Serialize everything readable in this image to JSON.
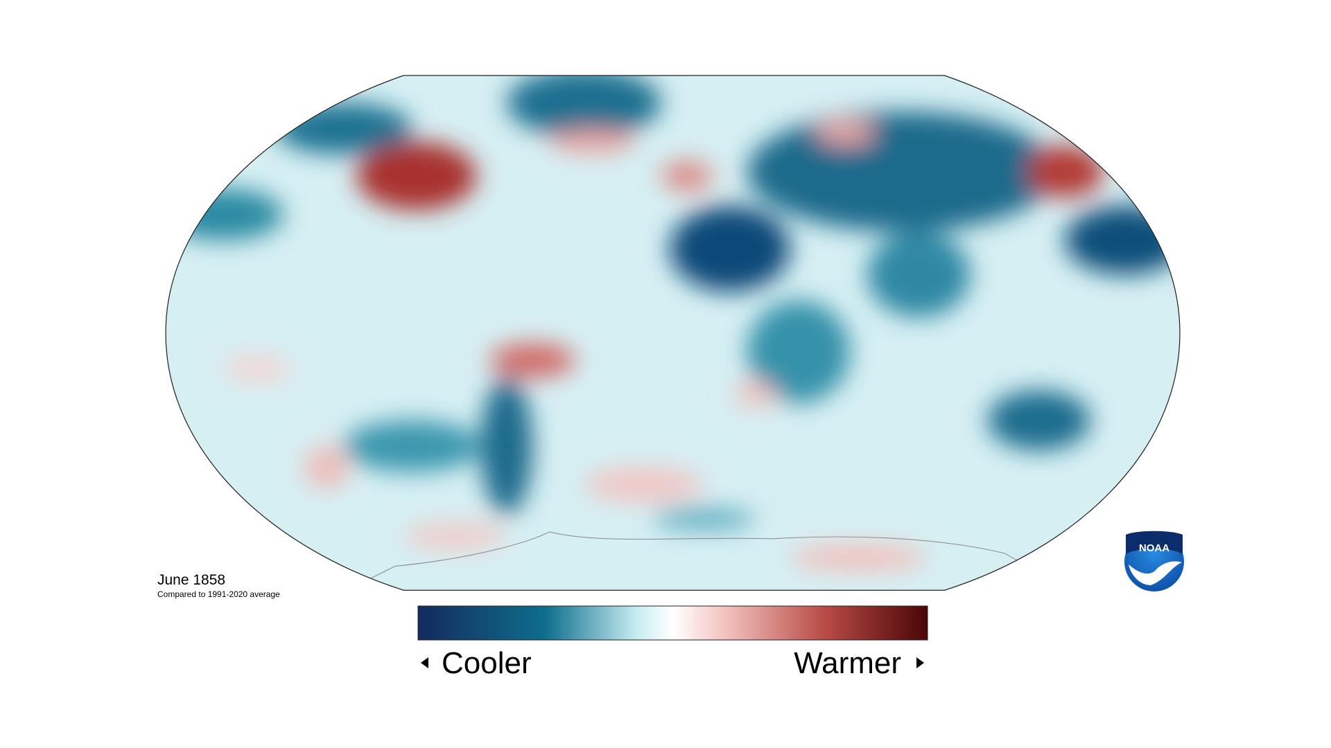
{
  "map": {
    "title": "June 1858",
    "subtitle": "Compared to 1991-2020 average",
    "legend": {
      "low_label": "Cooler",
      "high_label": "Warmer"
    },
    "logo": "NOAA"
  }
}
